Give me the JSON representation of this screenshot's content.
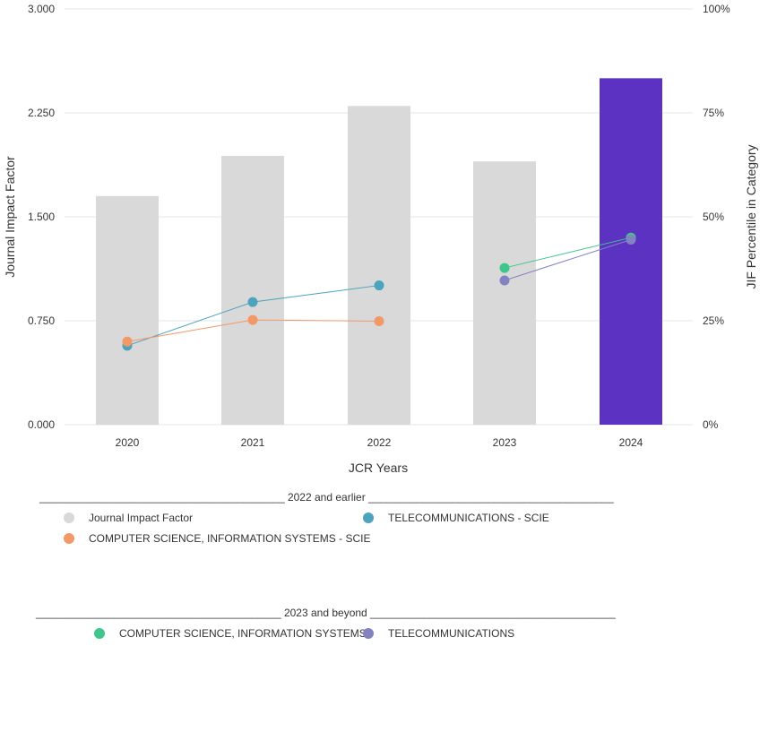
{
  "chart_data": {
    "type": "bar",
    "categories": [
      "2020",
      "2021",
      "2022",
      "2023",
      "2024"
    ],
    "jif_values": [
      1.65,
      1.94,
      2.3,
      1.9,
      2.5
    ],
    "bar_colors": [
      "#d9d9d9",
      "#d9d9d9",
      "#d9d9d9",
      "#d9d9d9",
      "#5b32c2"
    ],
    "ylabel_left": "Journal Impact Factor",
    "ylabel_right": "JIF Percentile in Category",
    "xlabel": "JCR Years",
    "ylim_left": [
      0,
      3
    ],
    "ylim_right": [
      0,
      100
    ],
    "yticks_left": [
      "0.000",
      "0.750",
      "1.500",
      "2.250",
      "3.000"
    ],
    "yticks_right": [
      "0%",
      "25%",
      "50%",
      "75%",
      "100%"
    ],
    "grid": true,
    "series": [
      {
        "name": "TELECOMMUNICATIONS - SCIE",
        "color": "#4ba3bd",
        "x": [
          "2020",
          "2021",
          "2022"
        ],
        "values": [
          19,
          29.5,
          33.5
        ]
      },
      {
        "name": "COMPUTER SCIENCE, INFORMATION SYSTEMS - SCIE",
        "color": "#f39867",
        "x": [
          "2020",
          "2021",
          "2022"
        ],
        "values": [
          20,
          25.2,
          24.9
        ]
      },
      {
        "name": "COMPUTER SCIENCE, INFORMATION SYSTEMS",
        "color": "#3ec68c",
        "x": [
          "2023",
          "2024"
        ],
        "values": [
          37.7,
          45
        ]
      },
      {
        "name": "TELECOMMUNICATIONS",
        "color": "#8482c0",
        "x": [
          "2023",
          "2024"
        ],
        "values": [
          34.7,
          44.5
        ]
      }
    ]
  },
  "legend": {
    "group1_heading": "_________________________________________ 2022 and earlier _________________________________________",
    "group1_items": [
      {
        "label": "Journal Impact Factor",
        "color": "#d9d9d9"
      },
      {
        "label": "TELECOMMUNICATIONS - SCIE",
        "color": "#4ba3bd"
      },
      {
        "label": "COMPUTER SCIENCE, INFORMATION SYSTEMS - SCIE",
        "color": "#f39867"
      }
    ],
    "group2_heading": "_________________________________________ 2023 and beyond _________________________________________",
    "group2_items": [
      {
        "label": "COMPUTER SCIENCE, INFORMATION SYSTEMS",
        "color": "#3ec68c"
      },
      {
        "label": "TELECOMMUNICATIONS",
        "color": "#8482c0"
      }
    ]
  }
}
